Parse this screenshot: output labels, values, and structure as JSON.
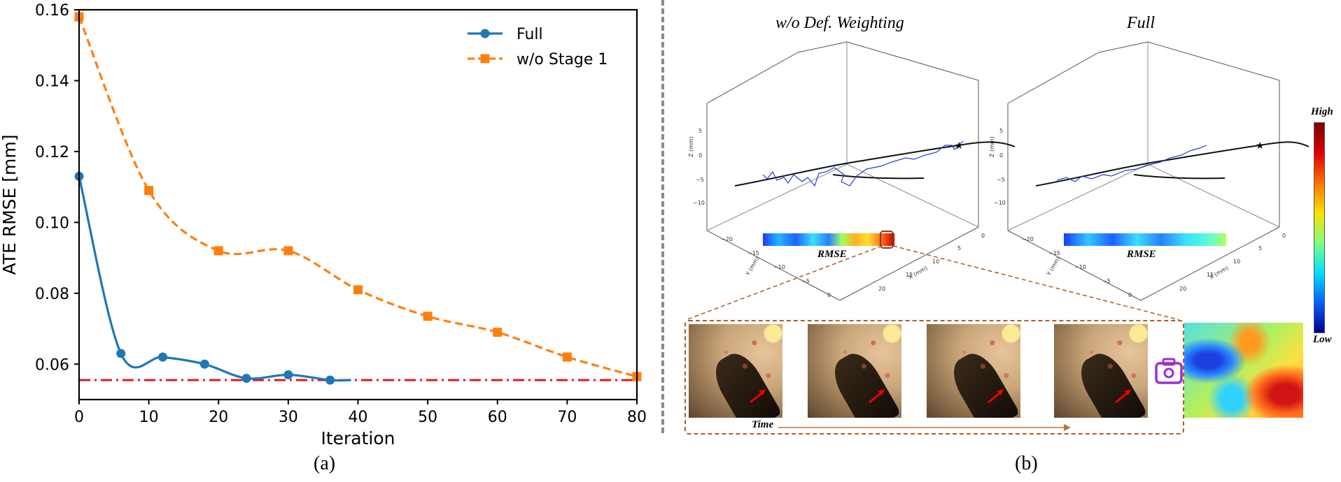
{
  "chart_data": {
    "type": "line",
    "title": "",
    "xlabel": "Iteration",
    "ylabel": "ATE RMSE [mm]",
    "xlim": [
      0,
      80
    ],
    "ylim": [
      0.05,
      0.16
    ],
    "xticks": [
      0,
      10,
      20,
      30,
      40,
      50,
      60,
      70,
      80
    ],
    "yticks": [
      0.06,
      0.08,
      0.1,
      0.12,
      0.14,
      0.16
    ],
    "ytick_labels": [
      "0.06",
      "0.08",
      "0.10",
      "0.12",
      "0.14",
      "0.16"
    ],
    "legend_position": "top-right",
    "series": [
      {
        "name": "Full",
        "color": "#1f77b4",
        "marker": "circle",
        "line": "solid",
        "x": [
          0,
          6,
          12,
          18,
          24,
          30,
          36
        ],
        "y": [
          0.113,
          0.063,
          0.062,
          0.06,
          0.056,
          0.057,
          0.0555
        ],
        "curve_end_x": 39
      },
      {
        "name": "w/o Stage 1",
        "color": "#ff7f0e",
        "marker": "square",
        "line": "dashed",
        "x": [
          0,
          10,
          20,
          30,
          40,
          50,
          60,
          70,
          80
        ],
        "y": [
          0.158,
          0.109,
          0.092,
          0.092,
          0.081,
          0.0735,
          0.069,
          0.062,
          0.0565
        ]
      }
    ],
    "reference_line": {
      "y": 0.0555,
      "color": "#e31a1c",
      "style": "dash-dot"
    }
  },
  "captions": {
    "a": "(a)",
    "b": "(b)"
  },
  "panel_b": {
    "left_title": "w/o Def. Weighting",
    "right_title": "Full",
    "rmse_label": "RMSE",
    "time_label": "Time",
    "colorbar_high": "High",
    "colorbar_low": "Low",
    "axis_z_label": "Z (mm)",
    "axis_y_label": "Y (mm)",
    "axis_x_label": "X (mm)",
    "z_ticks": [
      "5",
      "0",
      "−5",
      "−10"
    ],
    "y_ticks": [
      "−20",
      "−15",
      "−10",
      "−5",
      "0"
    ],
    "x_ticks": [
      "0",
      "5",
      "10",
      "15",
      "20"
    ],
    "camera_icon": "camera-icon"
  }
}
